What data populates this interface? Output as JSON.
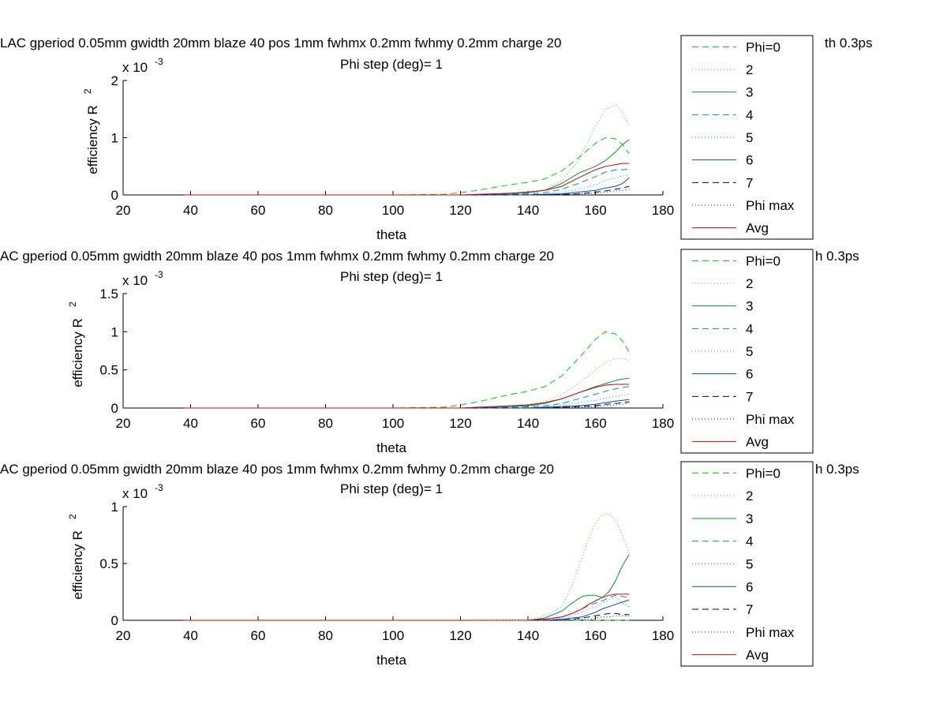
{
  "chart_data": [
    {
      "type": "line",
      "title_line1": "LAC gperiod 0.05mm gwidth 20mm blaze 40 pos 1mm fwhmx 0.2mm fwhmy 0.2mm charge 20",
      "title_line1_tail": "th 0.3ps",
      "title_line2": "Phi step (deg)= 1",
      "xlabel": "theta",
      "ylabel": "efficiency R",
      "ylabel_sup": "2",
      "exponent": "x 10",
      "exponent_sup": "-3",
      "xlim": [
        20,
        180
      ],
      "ylim": [
        0,
        2
      ],
      "xticks": [
        "20",
        "40",
        "60",
        "80",
        "100",
        "120",
        "140",
        "160",
        "180"
      ],
      "yticks": [
        "0",
        "1",
        "2"
      ],
      "yticks_values": [
        0,
        1,
        2
      ],
      "legend_placement": "right",
      "legend": [
        "Phi=0",
        "2",
        "3",
        "4",
        "5",
        "6",
        "7",
        "Phi max",
        "Avg"
      ],
      "x": [
        38,
        60,
        80,
        100,
        115,
        120,
        125,
        130,
        135,
        140,
        145,
        150,
        155,
        160,
        163,
        166,
        168,
        170
      ],
      "series": [
        {
          "name": "Phi=0",
          "color": "#00cc00",
          "dash": "8,5",
          "values": [
            0,
            0,
            0,
            0,
            0.01,
            0.04,
            0.08,
            0.13,
            0.18,
            0.22,
            0.28,
            0.42,
            0.65,
            0.9,
            1.0,
            0.98,
            0.88,
            0.72
          ]
        },
        {
          "name": "2",
          "color": "#33cc33",
          "dash": "1,3",
          "values": [
            0,
            0,
            0,
            0,
            0,
            0,
            0.01,
            0.02,
            0.03,
            0.05,
            0.1,
            0.25,
            0.6,
            1.2,
            1.5,
            1.58,
            1.45,
            1.2
          ]
        },
        {
          "name": "3",
          "color": "#009933",
          "dash": "",
          "values": [
            0,
            0,
            0,
            0,
            0,
            0,
            0,
            0.01,
            0.02,
            0.04,
            0.08,
            0.2,
            0.38,
            0.5,
            0.6,
            0.75,
            0.88,
            0.97
          ]
        },
        {
          "name": "4",
          "color": "#009999",
          "dash": "8,5",
          "values": [
            0,
            0,
            0,
            0,
            0,
            0,
            0,
            0,
            0.01,
            0.02,
            0.04,
            0.1,
            0.2,
            0.32,
            0.4,
            0.44,
            0.44,
            0.45
          ]
        },
        {
          "name": "5",
          "color": "#0099cc",
          "dash": "1,3",
          "values": [
            0,
            0,
            0,
            0,
            0,
            0,
            0,
            0,
            0,
            0.01,
            0.02,
            0.05,
            0.1,
            0.18,
            0.25,
            0.3,
            0.33,
            0.35
          ]
        },
        {
          "name": "6",
          "color": "#0055aa",
          "dash": "",
          "values": [
            0,
            0,
            0,
            0,
            0,
            0,
            0,
            0,
            0,
            0,
            0.01,
            0.02,
            0.05,
            0.08,
            0.12,
            0.15,
            0.2,
            0.3
          ]
        },
        {
          "name": "7",
          "color": "#000066",
          "dash": "8,5",
          "values": [
            0,
            0,
            0,
            0,
            0,
            0,
            0,
            0,
            0,
            0,
            0,
            0.01,
            0.02,
            0.05,
            0.07,
            0.1,
            0.12,
            0.15
          ]
        },
        {
          "name": "Phi max",
          "color": "#0000cc",
          "dash": "1,3",
          "values": [
            0,
            0,
            0,
            0,
            0,
            0,
            0,
            0,
            0,
            0,
            0,
            0.01,
            0.02,
            0.03,
            0.05,
            0.07,
            0.08,
            0.1
          ]
        },
        {
          "name": "Avg",
          "color": "#dd0000",
          "dash": "",
          "values": [
            0,
            0,
            0,
            0,
            0,
            0,
            0.01,
            0.02,
            0.03,
            0.05,
            0.08,
            0.15,
            0.3,
            0.44,
            0.5,
            0.53,
            0.55,
            0.55
          ]
        }
      ]
    },
    {
      "type": "line",
      "title_line1": "AC gperiod 0.05mm gwidth 20mm blaze 40 pos 1mm fwhmx 0.2mm fwhmy 0.2mm charge 20",
      "title_line1_tail": "h 0.3ps",
      "title_line2": "Phi step (deg)= 1",
      "xlabel": "theta",
      "ylabel": "efficiency R",
      "ylabel_sup": "2",
      "exponent": "x 10",
      "exponent_sup": "-3",
      "xlim": [
        20,
        180
      ],
      "ylim": [
        0,
        1.5
      ],
      "xticks": [
        "20",
        "40",
        "60",
        "80",
        "100",
        "120",
        "140",
        "160",
        "180"
      ],
      "yticks": [
        "0",
        "0.5",
        "1",
        "1.5"
      ],
      "yticks_values": [
        0,
        0.5,
        1,
        1.5
      ],
      "legend_placement": "right",
      "legend": [
        "Phi=0",
        "2",
        "3",
        "4",
        "5",
        "6",
        "7",
        "Phi max",
        "Avg"
      ],
      "x": [
        38,
        60,
        80,
        100,
        115,
        120,
        125,
        130,
        135,
        140,
        145,
        150,
        155,
        160,
        163,
        166,
        168,
        170
      ],
      "series": [
        {
          "name": "Phi=0",
          "color": "#00cc00",
          "dash": "8,5",
          "values": [
            0,
            0,
            0,
            0,
            0.01,
            0.04,
            0.08,
            0.13,
            0.18,
            0.22,
            0.28,
            0.42,
            0.65,
            0.9,
            1.0,
            0.97,
            0.88,
            0.73
          ]
        },
        {
          "name": "2",
          "color": "#33cc33",
          "dash": "1,3",
          "values": [
            0,
            0,
            0,
            0,
            0,
            0,
            0.01,
            0.02,
            0.03,
            0.05,
            0.09,
            0.18,
            0.32,
            0.5,
            0.6,
            0.65,
            0.65,
            0.62
          ]
        },
        {
          "name": "3",
          "color": "#009933",
          "dash": "",
          "values": [
            0,
            0,
            0,
            0,
            0,
            0,
            0,
            0.01,
            0.02,
            0.03,
            0.06,
            0.12,
            0.2,
            0.28,
            0.32,
            0.36,
            0.38,
            0.39
          ]
        },
        {
          "name": "4",
          "color": "#009999",
          "dash": "8,5",
          "values": [
            0,
            0,
            0,
            0,
            0,
            0,
            0,
            0,
            0.01,
            0.02,
            0.03,
            0.06,
            0.12,
            0.18,
            0.22,
            0.25,
            0.27,
            0.28
          ]
        },
        {
          "name": "5",
          "color": "#0099cc",
          "dash": "1,3",
          "values": [
            0,
            0,
            0,
            0,
            0,
            0,
            0,
            0,
            0,
            0.01,
            0.02,
            0.04,
            0.07,
            0.1,
            0.13,
            0.15,
            0.17,
            0.18
          ]
        },
        {
          "name": "6",
          "color": "#0055aa",
          "dash": "",
          "values": [
            0,
            0,
            0,
            0,
            0,
            0,
            0,
            0,
            0,
            0,
            0.01,
            0.02,
            0.03,
            0.05,
            0.07,
            0.09,
            0.1,
            0.11
          ]
        },
        {
          "name": "7",
          "color": "#000066",
          "dash": "8,5",
          "values": [
            0,
            0,
            0,
            0,
            0,
            0,
            0,
            0,
            0,
            0,
            0,
            0.01,
            0.02,
            0.03,
            0.05,
            0.06,
            0.07,
            0.08
          ]
        },
        {
          "name": "Phi max",
          "color": "#0000cc",
          "dash": "1,3",
          "values": [
            0,
            0,
            0,
            0,
            0,
            0,
            0,
            0,
            0,
            0,
            0,
            0.01,
            0.01,
            0.02,
            0.03,
            0.04,
            0.05,
            0.06
          ]
        },
        {
          "name": "Avg",
          "color": "#dd0000",
          "dash": "",
          "values": [
            0,
            0,
            0,
            0,
            0,
            0,
            0.01,
            0.02,
            0.03,
            0.04,
            0.07,
            0.12,
            0.2,
            0.27,
            0.3,
            0.31,
            0.31,
            0.31
          ]
        }
      ]
    },
    {
      "type": "line",
      "title_line1": "AC gperiod 0.05mm gwidth 20mm blaze 40 pos 1mm fwhmx 0.2mm fwhmy 0.2mm charge 20",
      "title_line1_tail": "h 0.3ps",
      "title_line2": "Phi step (deg)= 1",
      "xlabel": "theta",
      "ylabel": "efficiency R",
      "ylabel_sup": "2",
      "exponent": "x 10",
      "exponent_sup": "-3",
      "xlim": [
        20,
        180
      ],
      "ylim": [
        0,
        1
      ],
      "xticks": [
        "20",
        "40",
        "60",
        "80",
        "100",
        "120",
        "140",
        "160",
        "180"
      ],
      "yticks": [
        "0",
        "0.5",
        "1"
      ],
      "yticks_values": [
        0,
        0.5,
        1
      ],
      "legend_placement": "right",
      "legend": [
        "Phi=0",
        "2",
        "3",
        "4",
        "5",
        "6",
        "7",
        "Phi max",
        "Avg"
      ],
      "x": [
        38,
        60,
        80,
        100,
        120,
        140,
        145,
        150,
        153,
        156,
        158,
        160,
        162,
        164,
        166,
        168,
        170
      ],
      "series": [
        {
          "name": "Phi=0",
          "color": "#00cc00",
          "dash": "8,5",
          "values": [
            0,
            0,
            0,
            0,
            0,
            0,
            0,
            0,
            0,
            0,
            0,
            0,
            0,
            0,
            0,
            0,
            0
          ]
        },
        {
          "name": "2",
          "color": "#33cc33",
          "dash": "1,3",
          "values": [
            0,
            0,
            0,
            0,
            0,
            0.01,
            0.04,
            0.12,
            0.3,
            0.55,
            0.72,
            0.85,
            0.93,
            0.94,
            0.88,
            0.75,
            0.6
          ]
        },
        {
          "name": "3",
          "color": "#009933",
          "dash": "",
          "values": [
            0,
            0,
            0,
            0,
            0,
            0,
            0.02,
            0.08,
            0.15,
            0.21,
            0.22,
            0.22,
            0.2,
            0.25,
            0.35,
            0.48,
            0.58
          ]
        },
        {
          "name": "4",
          "color": "#009999",
          "dash": "8,5",
          "values": [
            0,
            0,
            0,
            0,
            0,
            0,
            0.01,
            0.03,
            0.06,
            0.1,
            0.13,
            0.15,
            0.17,
            0.2,
            0.22,
            0.21,
            0.2
          ]
        },
        {
          "name": "5",
          "color": "#0099cc",
          "dash": "1,3",
          "values": [
            0,
            0,
            0,
            0,
            0,
            0,
            0.01,
            0.02,
            0.04,
            0.07,
            0.1,
            0.12,
            0.15,
            0.18,
            0.2,
            0.15,
            0.12
          ]
        },
        {
          "name": "6",
          "color": "#0055aa",
          "dash": "",
          "values": [
            0,
            0,
            0,
            0,
            0,
            0,
            0,
            0.01,
            0.02,
            0.03,
            0.05,
            0.07,
            0.1,
            0.12,
            0.14,
            0.16,
            0.18
          ]
        },
        {
          "name": "7",
          "color": "#000066",
          "dash": "8,5",
          "values": [
            0,
            0,
            0,
            0,
            0,
            0,
            0,
            0,
            0.01,
            0.02,
            0.03,
            0.04,
            0.05,
            0.06,
            0.06,
            0.05,
            0.05
          ]
        },
        {
          "name": "Phi max",
          "color": "#0000cc",
          "dash": "1,3",
          "values": [
            0,
            0,
            0,
            0,
            0,
            0,
            0,
            0,
            0,
            0.01,
            0.01,
            0.02,
            0.03,
            0.03,
            0.04,
            0.04,
            0.04
          ]
        },
        {
          "name": "Avg",
          "color": "#dd0000",
          "dash": "",
          "values": [
            0,
            0,
            0,
            0,
            0,
            0,
            0.01,
            0.03,
            0.06,
            0.1,
            0.14,
            0.17,
            0.2,
            0.22,
            0.23,
            0.23,
            0.23
          ]
        }
      ]
    }
  ]
}
